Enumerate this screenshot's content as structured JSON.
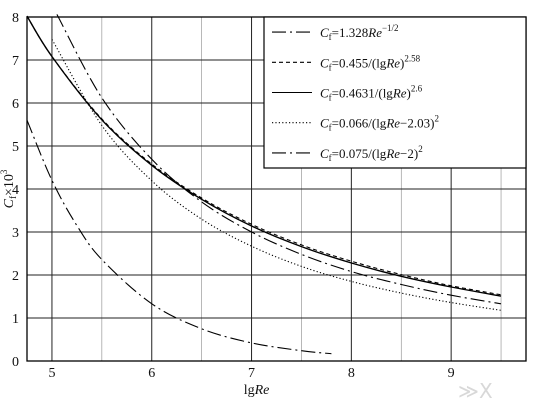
{
  "chart_data": {
    "type": "line",
    "xlabel": {
      "pre": "lg",
      "italic": "Re"
    },
    "ylabel": {
      "c": "C",
      "sub": "f",
      "mid": "×10",
      "sup": "3"
    },
    "xlim": [
      4.75,
      9.75
    ],
    "ylim": [
      0,
      8
    ],
    "x_ticks": [
      5,
      6,
      7,
      8,
      9
    ],
    "y_ticks": [
      0,
      1,
      2,
      3,
      4,
      5,
      6,
      7,
      8
    ],
    "grid": true,
    "legend_placement": "top-right",
    "series": [
      {
        "name": "Cf=1.328Re^-1/2",
        "legend": {
          "pre": "=1.328",
          "re": "Re",
          "sup": "−1/2",
          "post": ""
        },
        "dash": "14 4 2 4",
        "x": [
          4.75,
          5.0,
          5.25,
          5.5,
          6.0,
          6.5,
          7.0,
          7.5,
          7.8
        ],
        "y": [
          5.6,
          4.2,
          3.15,
          2.36,
          1.33,
          0.75,
          0.42,
          0.24,
          0.17
        ]
      },
      {
        "name": "Cf=0.455/(lgRe)^2.58",
        "legend": {
          "pre": "=0.455/(lg",
          "re": "Re",
          "sup": "2.58",
          "post": ")"
        },
        "dash": "4 3",
        "x": [
          4.75,
          5.0,
          5.5,
          6.0,
          6.5,
          7.0,
          7.5,
          8.0,
          8.5,
          9.0,
          9.5
        ],
        "y": [
          8.02,
          7.08,
          5.63,
          4.58,
          3.79,
          3.18,
          2.7,
          2.32,
          2.01,
          1.75,
          1.54
        ]
      },
      {
        "name": "Cf=0.4631/(lgRe)^2.6",
        "legend": {
          "pre": "=0.4631/(lg",
          "re": "Re",
          "sup": "2.6",
          "post": ")"
        },
        "dash": "",
        "x": [
          4.75,
          5.0,
          5.5,
          6.0,
          6.5,
          7.0,
          7.5,
          8.0,
          8.5,
          9.0,
          9.5
        ],
        "y": [
          8.02,
          7.08,
          5.61,
          4.55,
          3.76,
          3.14,
          2.66,
          2.28,
          1.97,
          1.72,
          1.51
        ]
      },
      {
        "name": "Cf=0.066/(lgRe-2.03)^2",
        "legend": {
          "pre": "=0.066/(lg",
          "re": "Re",
          "sup": "2",
          "post": "−2.03)"
        },
        "dash": "1.2 2.2",
        "x": [
          5.0,
          5.5,
          6.0,
          6.5,
          7.0,
          7.5,
          8.0,
          8.5,
          9.0,
          9.5
        ],
        "y": [
          7.48,
          5.48,
          4.19,
          3.3,
          2.67,
          2.2,
          1.85,
          1.58,
          1.36,
          1.18
        ]
      },
      {
        "name": "Cf=0.075/(lgRe-2)^2",
        "legend": {
          "pre": "=0.075/(lg",
          "re": "Re",
          "sup": "2",
          "post": "−2)"
        },
        "dash": "14 4 2 4",
        "x": [
          5.05,
          5.5,
          6.0,
          6.5,
          7.0,
          7.5,
          8.0,
          8.5,
          9.0,
          9.5
        ],
        "y": [
          8.06,
          6.12,
          4.69,
          3.7,
          3.0,
          2.48,
          2.08,
          1.78,
          1.53,
          1.33
        ]
      }
    ]
  },
  "watermark": "≫X"
}
